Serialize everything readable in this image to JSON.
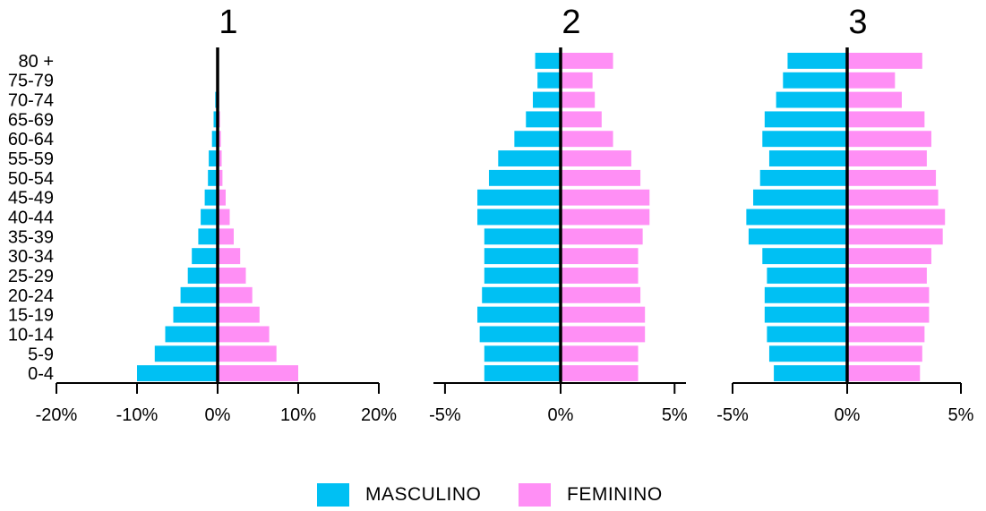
{
  "colors": {
    "male": "#00c0f3",
    "female": "#ff8ff5",
    "axis": "#000000"
  },
  "age_groups": [
    "0-4",
    "5-9",
    "10-14",
    "15-19",
    "20-24",
    "25-29",
    "30-34",
    "35-39",
    "40-44",
    "45-49",
    "50-54",
    "55-59",
    "60-64",
    "65-69",
    "70-74",
    "75-79",
    "80 +"
  ],
  "chart_data": [
    {
      "type": "bar",
      "orientation": "horizontal",
      "title": "1",
      "categories": [
        "0-4",
        "5-9",
        "10-14",
        "15-19",
        "20-24",
        "25-29",
        "30-34",
        "35-39",
        "40-44",
        "45-49",
        "50-54",
        "55-59",
        "60-64",
        "65-69",
        "70-74",
        "75-79",
        "80 +"
      ],
      "xlim": [
        -20,
        20
      ],
      "ticks": [
        "-20%",
        "-10%",
        "0%",
        "10%",
        "20%"
      ],
      "tick_values": [
        -20,
        -10,
        0,
        10,
        20
      ],
      "series": [
        {
          "name": "MASCULINO",
          "values": [
            -10.0,
            -7.8,
            -6.5,
            -5.5,
            -4.6,
            -3.7,
            -3.2,
            -2.4,
            -2.1,
            -1.6,
            -1.2,
            -1.1,
            -0.7,
            -0.5,
            -0.3,
            0,
            0
          ]
        },
        {
          "name": "FEMININO",
          "values": [
            10.0,
            7.3,
            6.4,
            5.2,
            4.3,
            3.5,
            2.8,
            2.0,
            1.5,
            1.0,
            0.6,
            0.5,
            0.4,
            0.3,
            0.2,
            0,
            0
          ]
        }
      ]
    },
    {
      "type": "bar",
      "orientation": "horizontal",
      "title": "2",
      "categories": [
        "0-4",
        "5-9",
        "10-14",
        "15-19",
        "20-24",
        "25-29",
        "30-34",
        "35-39",
        "40-44",
        "45-49",
        "50-54",
        "55-59",
        "60-64",
        "65-69",
        "70-74",
        "75-79",
        "80 +"
      ],
      "xlim": [
        -5.5,
        5.5
      ],
      "ticks": [
        "-5%",
        "0%",
        "5%"
      ],
      "tick_values": [
        -5,
        0,
        5
      ],
      "series": [
        {
          "name": "MASCULINO",
          "values": [
            -3.3,
            -3.3,
            -3.5,
            -3.6,
            -3.4,
            -3.3,
            -3.3,
            -3.3,
            -3.6,
            -3.6,
            -3.1,
            -2.7,
            -2.0,
            -1.5,
            -1.2,
            -1.0,
            -1.1
          ]
        },
        {
          "name": "FEMININO",
          "values": [
            3.4,
            3.4,
            3.7,
            3.7,
            3.5,
            3.4,
            3.4,
            3.6,
            3.9,
            3.9,
            3.5,
            3.1,
            2.3,
            1.8,
            1.5,
            1.4,
            2.3
          ]
        }
      ]
    },
    {
      "type": "bar",
      "orientation": "horizontal",
      "title": "3",
      "categories": [
        "0-4",
        "5-9",
        "10-14",
        "15-19",
        "20-24",
        "25-29",
        "30-34",
        "35-39",
        "40-44",
        "45-49",
        "50-54",
        "55-59",
        "60-64",
        "65-69",
        "70-74",
        "75-79",
        "80 +"
      ],
      "xlim": [
        -5,
        5
      ],
      "ticks": [
        "-5%",
        "0%",
        "5%"
      ],
      "tick_values": [
        -5,
        0,
        5
      ],
      "series": [
        {
          "name": "MASCULINO",
          "values": [
            -3.2,
            -3.4,
            -3.5,
            -3.6,
            -3.6,
            -3.5,
            -3.7,
            -4.3,
            -4.4,
            -4.1,
            -3.8,
            -3.4,
            -3.7,
            -3.6,
            -3.1,
            -2.8,
            -2.6
          ]
        },
        {
          "name": "FEMININO",
          "values": [
            3.2,
            3.3,
            3.4,
            3.6,
            3.6,
            3.5,
            3.7,
            4.2,
            4.3,
            4.0,
            3.9,
            3.5,
            3.7,
            3.4,
            2.4,
            2.1,
            3.3
          ]
        }
      ]
    }
  ],
  "legend": {
    "male_label": "MASCULINO",
    "female_label": "FEMININO"
  }
}
